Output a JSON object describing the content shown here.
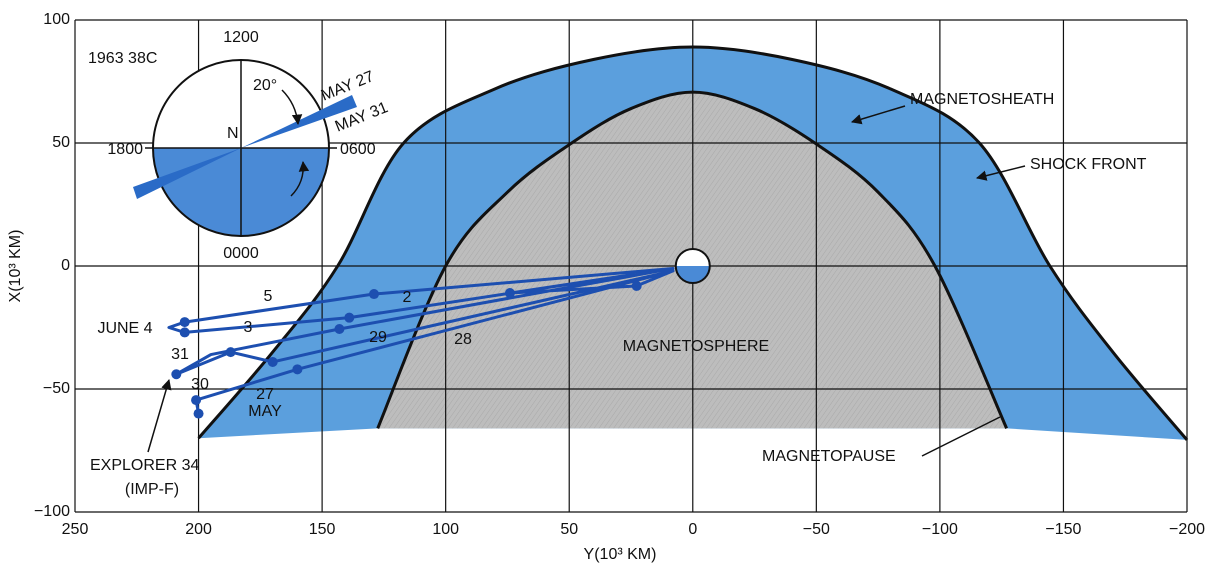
{
  "chart_data": {
    "type": "line",
    "xlabel": "Y(10³ KM)",
    "ylabel": "X(10³ KM)",
    "xlim": [
      250,
      -200
    ],
    "ylim": [
      -100,
      100
    ],
    "xticks": [
      250,
      200,
      150,
      100,
      50,
      0,
      {
        "value": -50,
        "label": "−50"
      },
      {
        "value": -100,
        "label": "−100"
      },
      {
        "value": -150,
        "label": "−150"
      },
      {
        "value": -200,
        "label": "−200"
      }
    ],
    "yticks": [
      100,
      50,
      0,
      {
        "value": -50,
        "label": "−50"
      },
      {
        "value": -100,
        "label": "−100"
      }
    ],
    "grid": true,
    "series": [
      {
        "name": "SHOCK FRONT",
        "color": "#5b9fdd",
        "x": [
          200,
          170,
          143.7,
          117,
          80,
          40,
          0,
          -40,
          -80,
          -116,
          -144.5,
          -170,
          -200
        ],
        "y": [
          -70,
          -35,
          0,
          50,
          72,
          84,
          89,
          84,
          72,
          50,
          0,
          -35,
          -70.7
        ]
      },
      {
        "name": "MAGNETOPAUSE",
        "color": "#bcbcbc",
        "x": [
          127.5,
          100,
          75,
          49,
          25,
          0,
          -25,
          -49.4,
          -75,
          -98,
          -127
        ],
        "y": [
          -66,
          0,
          30,
          50,
          64,
          70.7,
          64,
          50,
          30,
          0,
          -66
        ]
      },
      {
        "name": "EXPLORER 34",
        "color": "#1d4fb0",
        "x": [
          200,
          201,
          160,
          8,
          170,
          187,
          209,
          195,
          143,
          8,
          139,
          205.6,
          212,
          205.6,
          129,
          8,
          74,
          22.7,
          8
        ],
        "y": [
          -60,
          -54.5,
          -42,
          -2,
          -39,
          -35,
          -44,
          -36,
          -25.6,
          -1,
          -21,
          -27,
          -25,
          -22.8,
          -11.4,
          -1,
          -11,
          -8.1,
          -2
        ]
      }
    ],
    "points": {
      "x": [
        22.7,
        74,
        129,
        139,
        143,
        205.6,
        205.6,
        187,
        170,
        160,
        209,
        201,
        200
      ],
      "y": [
        -8.1,
        -11,
        -11.4,
        -21,
        -25.6,
        -22.8,
        -27,
        -35,
        -39,
        -42,
        -44,
        -54.5,
        -60
      ]
    },
    "annotations": [
      "MAGNETOSHEATH",
      "MAGNETOSPHERE",
      "(IMP-F)"
    ],
    "day_labels": [
      "5",
      "2",
      "JUNE 4",
      "3",
      "31",
      "29",
      "28",
      "30",
      "27",
      "MAY"
    ],
    "inset": {
      "title": "1963 38C",
      "top": "1200",
      "left": "1800",
      "right": "0600",
      "bottom": "0000",
      "center": "N",
      "angle": "20°",
      "first": "MAY 27",
      "last": "MAY 31"
    }
  }
}
